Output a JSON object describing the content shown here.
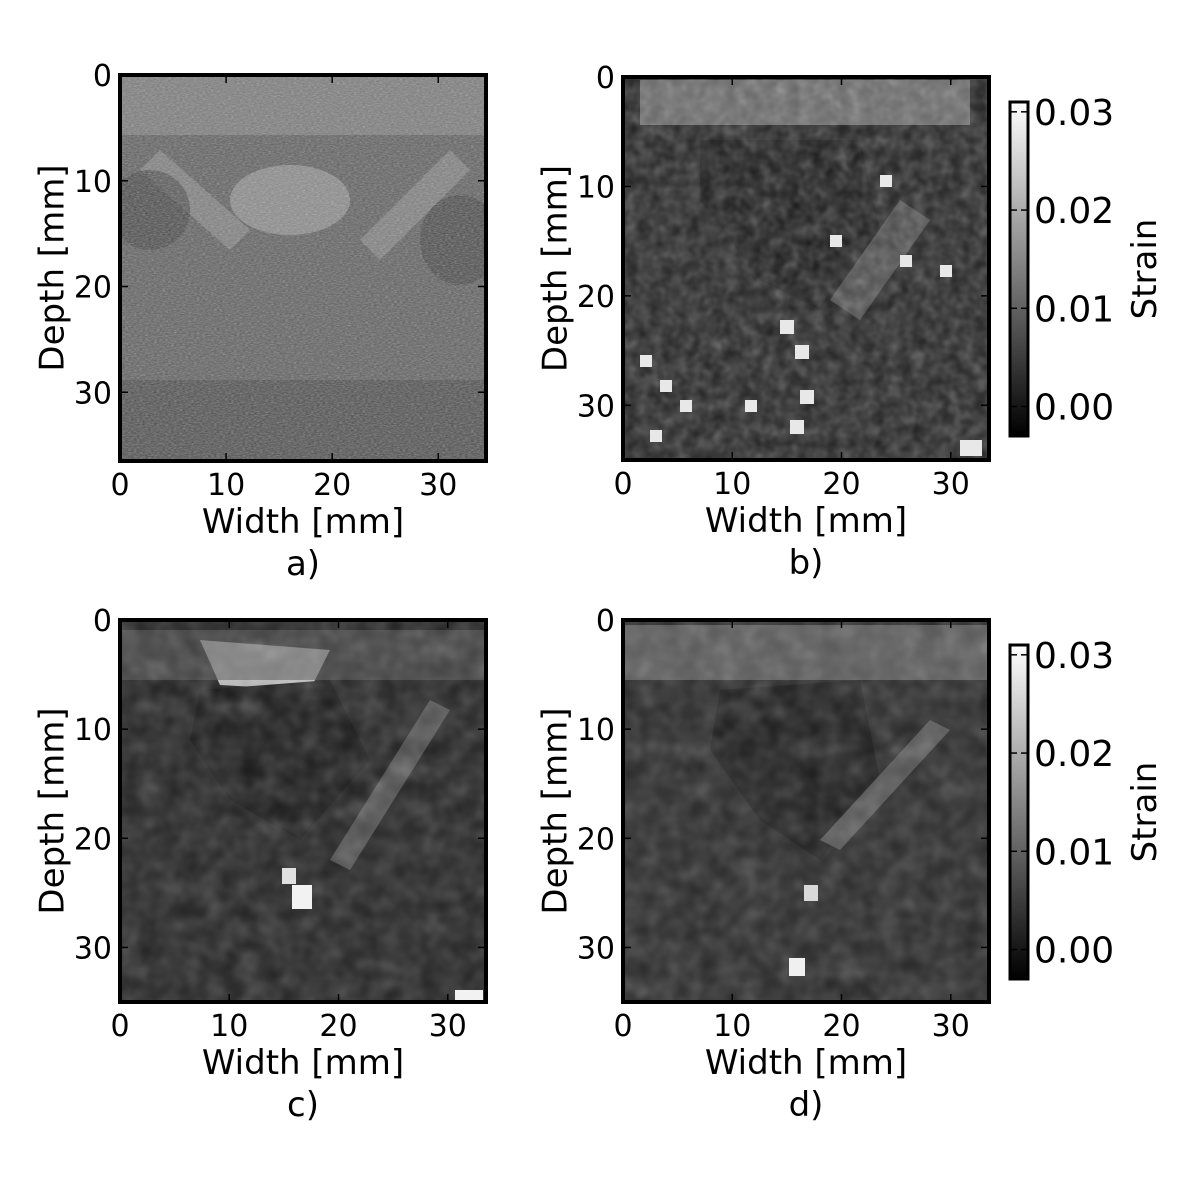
{
  "chart_data": [
    {
      "id": "a",
      "type": "heatmap",
      "caption": "a)",
      "xlabel": "Width [mm]",
      "ylabel": "Depth [mm]",
      "xlim": [
        0,
        34.5
      ],
      "ylim": [
        36.5,
        0
      ],
      "xticks": [
        "0",
        "10",
        "20",
        "30"
      ],
      "yticks": [
        "0",
        "10",
        "20",
        "30"
      ],
      "content": "B-mode ultrasound image (grayscale speckle)",
      "colorbar": null
    },
    {
      "id": "b",
      "type": "heatmap",
      "caption": "b)",
      "xlabel": "Width [mm]",
      "ylabel": "Depth [mm]",
      "xlim": [
        0,
        33.5
      ],
      "ylim": [
        35,
        0
      ],
      "xticks": [
        "0",
        "10",
        "20",
        "30"
      ],
      "yticks": [
        "0",
        "10",
        "20",
        "30"
      ],
      "content": "Strain image (noisy estimate)",
      "colorbar": {
        "label": "Strain",
        "ticks": [
          "0.00",
          "0.01",
          "0.02",
          "0.03"
        ],
        "range": [
          -0.003,
          0.031
        ],
        "colormap": "gray"
      }
    },
    {
      "id": "c",
      "type": "heatmap",
      "caption": "c)",
      "xlabel": "Width [mm]",
      "ylabel": "Depth [mm]",
      "xlim": [
        0,
        33.5
      ],
      "ylim": [
        35,
        0
      ],
      "xticks": [
        "0",
        "10",
        "20",
        "30"
      ],
      "yticks": [
        "0",
        "10",
        "20",
        "30"
      ],
      "content": "Strain image (smoothed estimate)",
      "colorbar": null
    },
    {
      "id": "d",
      "type": "heatmap",
      "caption": "d)",
      "xlabel": "Width [mm]",
      "ylabel": "Depth [mm]",
      "xlim": [
        0,
        33.5
      ],
      "ylim": [
        35,
        0
      ],
      "xticks": [
        "0",
        "10",
        "20",
        "30"
      ],
      "yticks": [
        "0",
        "10",
        "20",
        "30"
      ],
      "content": "Strain image (regularized estimate)",
      "colorbar": {
        "label": "Strain",
        "ticks": [
          "0.00",
          "0.01",
          "0.02",
          "0.03"
        ],
        "range": [
          -0.003,
          0.031
        ],
        "colormap": "gray"
      }
    }
  ]
}
